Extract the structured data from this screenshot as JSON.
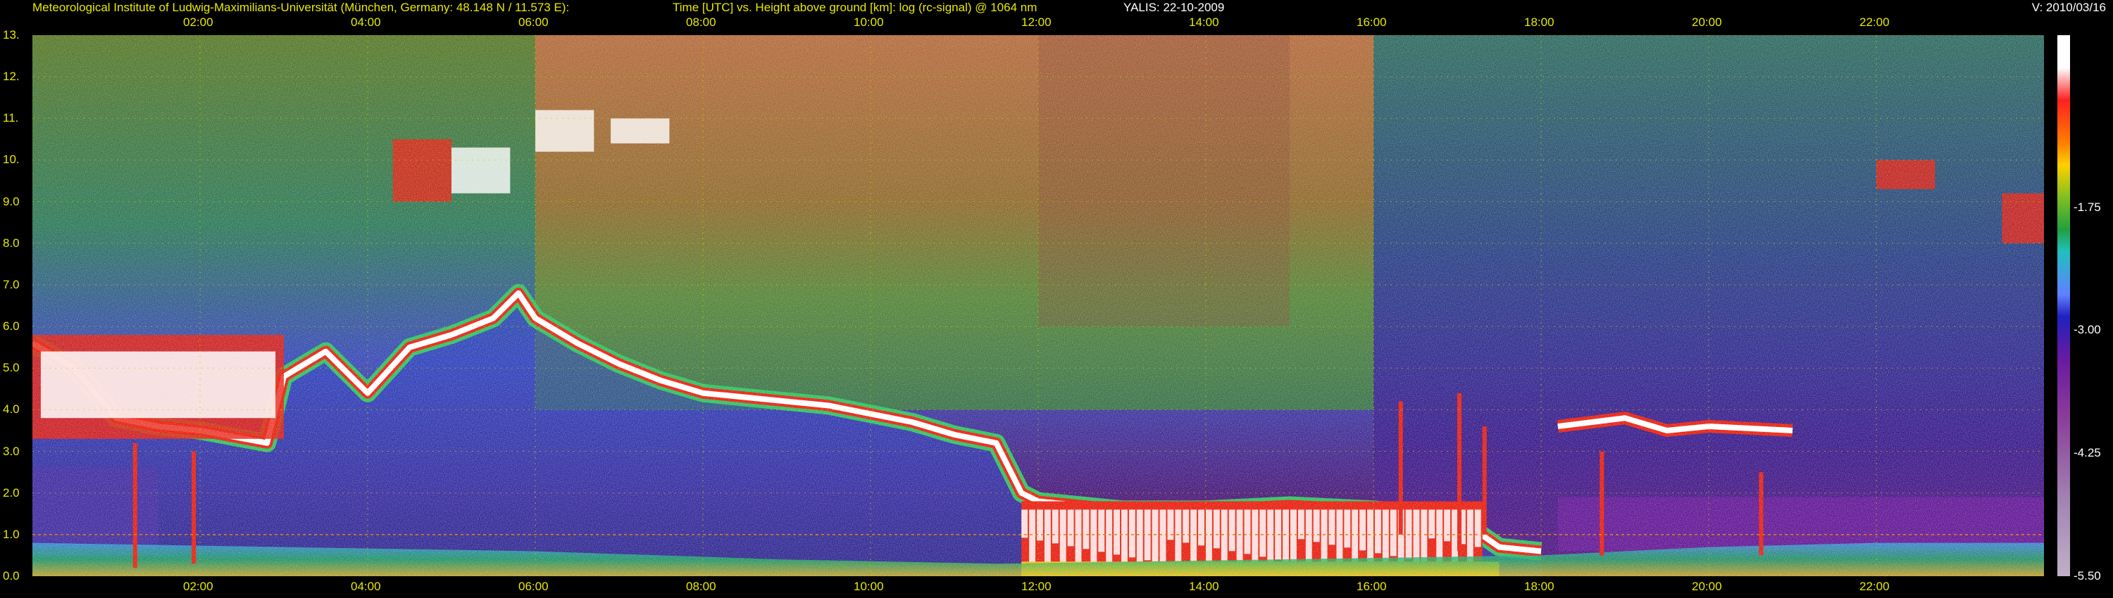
{
  "header": {
    "institute": "Meteorological Institute of Ludwig-Maximilians-Universität (München, Germany: 48.148 N / 11.573 E):",
    "title": "Time [UTC] vs. Height above ground [km]: log (rc-signal) @ 1064 nm",
    "instrument": "YALIS: 22-10-2009",
    "version": "V: 2010/03/16"
  },
  "chart_data": {
    "type": "heatmap",
    "title": "Time [UTC] vs. Height above ground [km]: log (rc-signal) @ 1064 nm",
    "xlabel": "Time [UTC]",
    "ylabel": "Height above ground [km]",
    "x_range_hours": [
      0,
      24
    ],
    "y_range_km": [
      0,
      13
    ],
    "x_ticks": [
      "02:00",
      "04:00",
      "06:00",
      "08:00",
      "10:00",
      "12:00",
      "14:00",
      "16:00",
      "18:00",
      "20:00",
      "22:00"
    ],
    "x_tick_hours": [
      2,
      4,
      6,
      8,
      10,
      12,
      14,
      16,
      18,
      20,
      22
    ],
    "y_ticks": [
      "0.0",
      "1.0",
      "2.0",
      "3.0",
      "4.0",
      "5.0",
      "6.0",
      "7.0",
      "8.0",
      "9.0",
      "10.",
      "11.",
      "12.",
      "13."
    ],
    "y_tick_values": [
      0,
      1,
      2,
      3,
      4,
      5,
      6,
      7,
      8,
      9,
      10,
      11,
      12,
      13
    ],
    "colorbar": {
      "range": [
        -5.5,
        0
      ],
      "labels": [
        "-1.75",
        "-3.00",
        "-4.25",
        "-5.50"
      ],
      "label_values": [
        -1.75,
        -3.0,
        -4.25,
        -5.5
      ]
    },
    "features": {
      "cloud_base_km": [
        [
          0.0,
          5.6
        ],
        [
          0.5,
          5.0
        ],
        [
          1.0,
          3.8
        ],
        [
          1.5,
          3.6
        ],
        [
          2.0,
          3.5
        ],
        [
          2.8,
          3.2
        ],
        [
          3.0,
          4.8
        ],
        [
          3.5,
          5.4
        ],
        [
          4.0,
          4.4
        ],
        [
          4.5,
          5.5
        ],
        [
          5.0,
          5.8
        ],
        [
          5.5,
          6.2
        ],
        [
          5.8,
          6.8
        ],
        [
          6.0,
          6.2
        ],
        [
          6.5,
          5.6
        ],
        [
          7.0,
          5.1
        ],
        [
          7.5,
          4.7
        ],
        [
          8.0,
          4.4
        ],
        [
          8.5,
          4.3
        ],
        [
          9.0,
          4.2
        ],
        [
          9.5,
          4.1
        ],
        [
          10.0,
          3.9
        ],
        [
          10.5,
          3.7
        ],
        [
          11.0,
          3.4
        ],
        [
          11.5,
          3.2
        ],
        [
          11.8,
          2.0
        ],
        [
          12.0,
          1.8
        ],
        [
          13.0,
          1.6
        ],
        [
          14.0,
          1.6
        ],
        [
          15.0,
          1.7
        ],
        [
          16.0,
          1.6
        ],
        [
          17.0,
          1.4
        ],
        [
          17.5,
          0.7
        ],
        [
          18.0,
          0.6
        ]
      ],
      "mid_cloud_km": [
        [
          18.2,
          3.6
        ],
        [
          19.0,
          3.8
        ],
        [
          19.5,
          3.5
        ],
        [
          20.0,
          3.6
        ],
        [
          21.0,
          3.5
        ]
      ],
      "boundary_layer_top_km": [
        [
          0,
          0.8
        ],
        [
          6,
          0.6
        ],
        [
          9,
          0.4
        ],
        [
          11.5,
          0.3
        ],
        [
          18,
          0.5
        ],
        [
          20,
          0.7
        ],
        [
          22,
          0.8
        ],
        [
          24,
          0.8
        ]
      ]
    }
  }
}
